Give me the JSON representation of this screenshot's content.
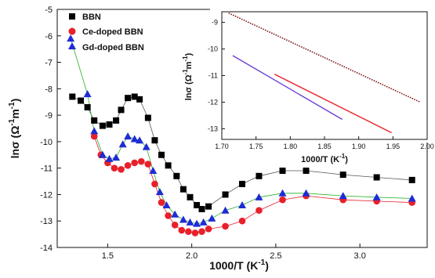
{
  "chart_data": [
    {
      "type": "line",
      "xlabel": "1000/T (K",
      "xlabel_sup": "-1",
      "ylabel": "lnσ (Ω",
      "ylabel_sup1": "-1",
      "ylabel_mid": "m",
      "ylabel_sup2": "-1",
      "xlim": [
        1.2,
        3.4
      ],
      "ylim": [
        -14,
        -5
      ],
      "x_ticks": [
        "1.5",
        "2.0",
        "2.5",
        "3.0"
      ],
      "y_ticks": [
        "-5",
        "-6",
        "-7",
        "-8",
        "-9",
        "-10",
        "-11",
        "-12",
        "-13",
        "-14"
      ],
      "legend_position": "top-left",
      "series": [
        {
          "name": "BBN",
          "color": "#000000",
          "line_color": "#555555",
          "marker": "square",
          "points": [
            [
              1.29,
              -8.3
            ],
            [
              1.34,
              -8.45
            ],
            [
              1.38,
              -8.7
            ],
            [
              1.42,
              -9.2
            ],
            [
              1.47,
              -9.4
            ],
            [
              1.51,
              -9.35
            ],
            [
              1.55,
              -9.2
            ],
            [
              1.58,
              -8.8
            ],
            [
              1.62,
              -8.35
            ],
            [
              1.66,
              -8.3
            ],
            [
              1.69,
              -8.4
            ],
            [
              1.74,
              -9.1
            ],
            [
              1.78,
              -9.95
            ],
            [
              1.82,
              -10.5
            ],
            [
              1.86,
              -10.9
            ],
            [
              1.91,
              -11.3
            ],
            [
              1.95,
              -11.8
            ],
            [
              1.99,
              -12.1
            ],
            [
              2.03,
              -12.4
            ],
            [
              2.06,
              -12.55
            ],
            [
              2.1,
              -12.45
            ],
            [
              2.2,
              -12
            ],
            [
              2.3,
              -11.6
            ],
            [
              2.4,
              -11.3
            ],
            [
              2.54,
              -11.1
            ],
            [
              2.68,
              -11.1
            ],
            [
              2.9,
              -11.25
            ],
            [
              3.1,
              -11.35
            ],
            [
              3.31,
              -11.45
            ]
          ]
        },
        {
          "name": "Ce-doped BBN",
          "color": "#e8202a",
          "line_color": "#e8202a",
          "marker": "circle",
          "points": [
            [
              1.42,
              -9.8
            ],
            [
              1.46,
              -10.5
            ],
            [
              1.5,
              -10.8
            ],
            [
              1.54,
              -11.0
            ],
            [
              1.58,
              -11.05
            ],
            [
              1.62,
              -10.9
            ],
            [
              1.66,
              -10.8
            ],
            [
              1.7,
              -10.75
            ],
            [
              1.74,
              -10.85
            ],
            [
              1.78,
              -11.6
            ],
            [
              1.82,
              -12.3
            ],
            [
              1.86,
              -12.8
            ],
            [
              1.9,
              -13.15
            ],
            [
              1.94,
              -13.35
            ],
            [
              1.98,
              -13.4
            ],
            [
              2.02,
              -13.45
            ],
            [
              2.06,
              -13.4
            ],
            [
              2.1,
              -13.3
            ],
            [
              2.2,
              -13.2
            ],
            [
              2.3,
              -13
            ],
            [
              2.4,
              -12.6
            ],
            [
              2.54,
              -12.2
            ],
            [
              2.68,
              -12.05
            ],
            [
              2.9,
              -12.2
            ],
            [
              3.1,
              -12.25
            ],
            [
              3.31,
              -12.3
            ]
          ]
        },
        {
          "name": "Gd-doped BBN",
          "color": "#1f2bd4",
          "line_color": "#27b227",
          "marker": "triangle",
          "points": [
            [
              1.28,
              -6.1
            ],
            [
              1.38,
              -8.2
            ],
            [
              1.42,
              -9.6
            ],
            [
              1.47,
              -10.5
            ],
            [
              1.51,
              -10.65
            ],
            [
              1.55,
              -10.6
            ],
            [
              1.59,
              -10.1
            ],
            [
              1.62,
              -9.8
            ],
            [
              1.66,
              -9.9
            ],
            [
              1.69,
              -9.95
            ],
            [
              1.73,
              -10.2
            ],
            [
              1.77,
              -11.1
            ],
            [
              1.81,
              -11.9
            ],
            [
              1.85,
              -12.4
            ],
            [
              1.9,
              -12.75
            ],
            [
              1.95,
              -12.95
            ],
            [
              1.99,
              -13.05
            ],
            [
              2.03,
              -13.1
            ],
            [
              2.07,
              -13.05
            ],
            [
              2.12,
              -12.9
            ],
            [
              2.2,
              -12.6
            ],
            [
              2.3,
              -12.4
            ],
            [
              2.4,
              -12.1
            ],
            [
              2.54,
              -11.95
            ],
            [
              2.68,
              -11.95
            ],
            [
              2.9,
              -12.05
            ],
            [
              3.1,
              -12.1
            ],
            [
              3.31,
              -12.15
            ]
          ]
        }
      ]
    },
    {
      "type": "line",
      "xlabel": "1000/T (K",
      "xlabel_sup": "-1",
      "ylabel": "lnσ (Ω",
      "ylabel_sup1": "-1",
      "ylabel_mid": "m",
      "ylabel_sup2": "-1",
      "xlim": [
        1.7,
        2.0
      ],
      "ylim": [
        -13.4,
        -8.6
      ],
      "x_ticks": [
        "1.70",
        "1.75",
        "1.80",
        "1.85",
        "1.90",
        "1.95",
        "2.00"
      ],
      "y_ticks": [
        "-9",
        "-10",
        "-11",
        "-12",
        "-13"
      ],
      "series": [
        {
          "color": "#7a1010",
          "style": "dotted",
          "points": [
            [
              1.71,
              -8.65
            ],
            [
              1.99,
              -12.0
            ]
          ]
        },
        {
          "color": "#e8202a",
          "style": "solid",
          "points": [
            [
              1.777,
              -10.95
            ],
            [
              1.948,
              -13.15
            ]
          ]
        },
        {
          "color": "#6a3fd6",
          "style": "solid",
          "points": [
            [
              1.716,
              -10.25
            ],
            [
              1.876,
              -12.65
            ]
          ]
        }
      ]
    }
  ]
}
